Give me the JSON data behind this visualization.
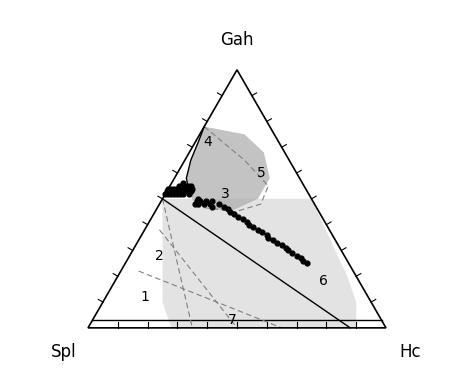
{
  "title_top": "Gah",
  "title_left": "Spl",
  "title_right": "Hc",
  "background_color": "#ffffff",
  "data_points_gah_spl_hc": [
    [
      0.52,
      0.4,
      0.08
    ],
    [
      0.53,
      0.39,
      0.08
    ],
    [
      0.54,
      0.38,
      0.08
    ],
    [
      0.53,
      0.4,
      0.07
    ],
    [
      0.54,
      0.39,
      0.07
    ],
    [
      0.55,
      0.38,
      0.07
    ],
    [
      0.52,
      0.42,
      0.06
    ],
    [
      0.53,
      0.41,
      0.06
    ],
    [
      0.54,
      0.4,
      0.06
    ],
    [
      0.55,
      0.39,
      0.06
    ],
    [
      0.52,
      0.43,
      0.05
    ],
    [
      0.53,
      0.42,
      0.05
    ],
    [
      0.54,
      0.41,
      0.05
    ],
    [
      0.55,
      0.4,
      0.05
    ],
    [
      0.52,
      0.44,
      0.04
    ],
    [
      0.53,
      0.43,
      0.04
    ],
    [
      0.54,
      0.42,
      0.04
    ],
    [
      0.55,
      0.41,
      0.04
    ],
    [
      0.56,
      0.4,
      0.04
    ],
    [
      0.52,
      0.45,
      0.03
    ],
    [
      0.53,
      0.44,
      0.03
    ],
    [
      0.54,
      0.43,
      0.03
    ],
    [
      0.55,
      0.42,
      0.03
    ],
    [
      0.52,
      0.46,
      0.02
    ],
    [
      0.53,
      0.45,
      0.02
    ],
    [
      0.54,
      0.44,
      0.02
    ],
    [
      0.52,
      0.47,
      0.01
    ],
    [
      0.53,
      0.46,
      0.01
    ],
    [
      0.54,
      0.45,
      0.01
    ],
    [
      0.52,
      0.48,
      0.0
    ],
    [
      0.53,
      0.47,
      0.0
    ],
    [
      0.54,
      0.46,
      0.0
    ],
    [
      0.48,
      0.4,
      0.12
    ],
    [
      0.49,
      0.39,
      0.12
    ],
    [
      0.5,
      0.38,
      0.12
    ],
    [
      0.48,
      0.39,
      0.13
    ],
    [
      0.49,
      0.38,
      0.13
    ],
    [
      0.48,
      0.37,
      0.15
    ],
    [
      0.49,
      0.36,
      0.15
    ],
    [
      0.48,
      0.35,
      0.17
    ],
    [
      0.49,
      0.34,
      0.17
    ],
    [
      0.47,
      0.35,
      0.18
    ],
    [
      0.48,
      0.32,
      0.2
    ],
    [
      0.47,
      0.31,
      0.22
    ],
    [
      0.46,
      0.3,
      0.24
    ],
    [
      0.45,
      0.3,
      0.25
    ],
    [
      0.44,
      0.29,
      0.27
    ],
    [
      0.43,
      0.28,
      0.29
    ],
    [
      0.42,
      0.27,
      0.31
    ],
    [
      0.41,
      0.26,
      0.33
    ],
    [
      0.4,
      0.26,
      0.34
    ],
    [
      0.39,
      0.25,
      0.36
    ],
    [
      0.38,
      0.24,
      0.38
    ],
    [
      0.37,
      0.23,
      0.4
    ],
    [
      0.36,
      0.22,
      0.42
    ],
    [
      0.35,
      0.22,
      0.43
    ],
    [
      0.34,
      0.21,
      0.45
    ],
    [
      0.33,
      0.2,
      0.47
    ],
    [
      0.32,
      0.19,
      0.49
    ],
    [
      0.31,
      0.18,
      0.51
    ],
    [
      0.3,
      0.18,
      0.52
    ],
    [
      0.29,
      0.17,
      0.54
    ],
    [
      0.28,
      0.16,
      0.56
    ],
    [
      0.27,
      0.15,
      0.58
    ],
    [
      0.26,
      0.15,
      0.59
    ],
    [
      0.25,
      0.14,
      0.61
    ]
  ]
}
